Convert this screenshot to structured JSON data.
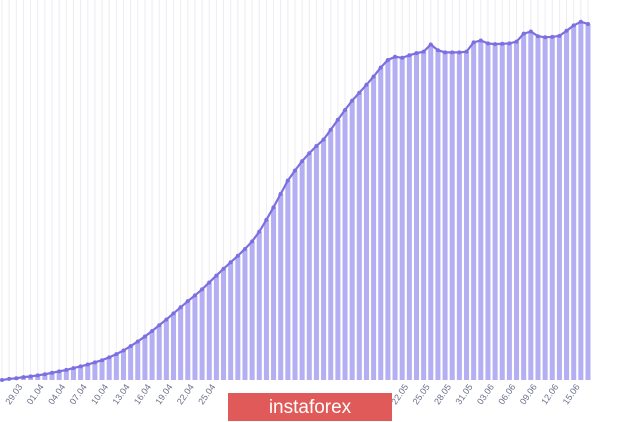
{
  "chart_data": {
    "type": "bar",
    "line_markers": true,
    "color": "#b4aef2",
    "line_color": "#7c70e0",
    "grid": true,
    "ylim": [
      0,
      100
    ],
    "categories": [
      null,
      null,
      "29.03",
      null,
      null,
      "01.04",
      null,
      null,
      "04.04",
      null,
      null,
      "07.04",
      null,
      null,
      "10.04",
      null,
      null,
      "13.04",
      null,
      null,
      "16.04",
      null,
      null,
      "19.04",
      null,
      null,
      "22.04",
      null,
      null,
      "25.04",
      null,
      null,
      null,
      null,
      null,
      null,
      null,
      null,
      null,
      null,
      null,
      null,
      null,
      null,
      null,
      null,
      null,
      null,
      null,
      null,
      null,
      null,
      null,
      null,
      null,
      null,
      "22.05",
      null,
      null,
      "25.05",
      null,
      null,
      "28.05",
      null,
      null,
      "31.05",
      null,
      null,
      "03.06",
      null,
      null,
      "06.06",
      null,
      null,
      "09.06",
      null,
      null,
      "12.06",
      null,
      null,
      "15.06",
      null,
      null
    ],
    "values": [
      0,
      0.3,
      0.5,
      0.8,
      1,
      1.3,
      1.6,
      2,
      2.4,
      2.8,
      3.3,
      3.8,
      4.3,
      4.9,
      5.5,
      6.3,
      7.2,
      8.2,
      9.4,
      10.7,
      12.1,
      13.6,
      15.2,
      16.8,
      18.5,
      20.2,
      21.9,
      23.5,
      25.2,
      27.1,
      29,
      30.9,
      32.7,
      34.5,
      36.4,
      38.5,
      41.2,
      44.5,
      48,
      51.7,
      55.4,
      58.2,
      60.8,
      63,
      65,
      66.8,
      69.5,
      72.3,
      75,
      77.6,
      79.8,
      82,
      84.3,
      86.8,
      88.9,
      89.8,
      89.5,
      90.2,
      90.8,
      91.2,
      93.2,
      91.6,
      91,
      91,
      91,
      91.2,
      93.8,
      94.3,
      93.5,
      93.3,
      93.4,
      93.5,
      94,
      96.2,
      96.8,
      95.5,
      95.2,
      95.3,
      95.6,
      97,
      98.5,
      99.5,
      98.9
    ]
  },
  "watermark": "instaforex"
}
